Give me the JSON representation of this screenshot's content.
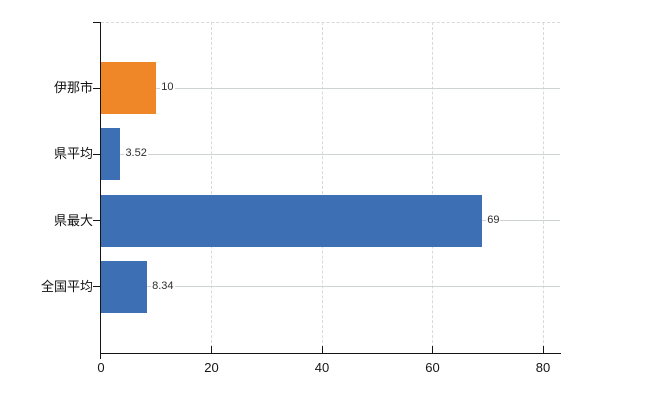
{
  "chart_data": {
    "type": "bar",
    "orientation": "horizontal",
    "categories": [
      "伊那市",
      "県平均",
      "県最大",
      "全国平均"
    ],
    "values": [
      10,
      3.52,
      69,
      8.34
    ],
    "value_labels": [
      "10",
      "3.52",
      "69",
      "8.34"
    ],
    "bar_colors": [
      "#EF8628",
      "#3D6FB5",
      "#3D6FB5",
      "#3D6FB5"
    ],
    "x_axis": {
      "ticks": [
        0,
        20,
        40,
        60,
        80
      ],
      "tick_labels": [
        "0",
        "20",
        "40",
        "60",
        "80"
      ],
      "range": [
        0,
        83.1
      ]
    },
    "grid": {
      "vertical_style": "dashed",
      "horizontal_style": "solid",
      "top_border": "dashed"
    },
    "legend": "none",
    "title": ""
  },
  "colors": {
    "highlight_bar": "#EF8628",
    "default_bar": "#3D6FB5",
    "axis": "#151515",
    "grid_vertical": "#d9d9d9",
    "grid_horizontal": "#ced4ce",
    "value_label": "#2e2e2e",
    "category_label": "#111111",
    "tick_label": "#161616",
    "background": "#ffffff"
  }
}
